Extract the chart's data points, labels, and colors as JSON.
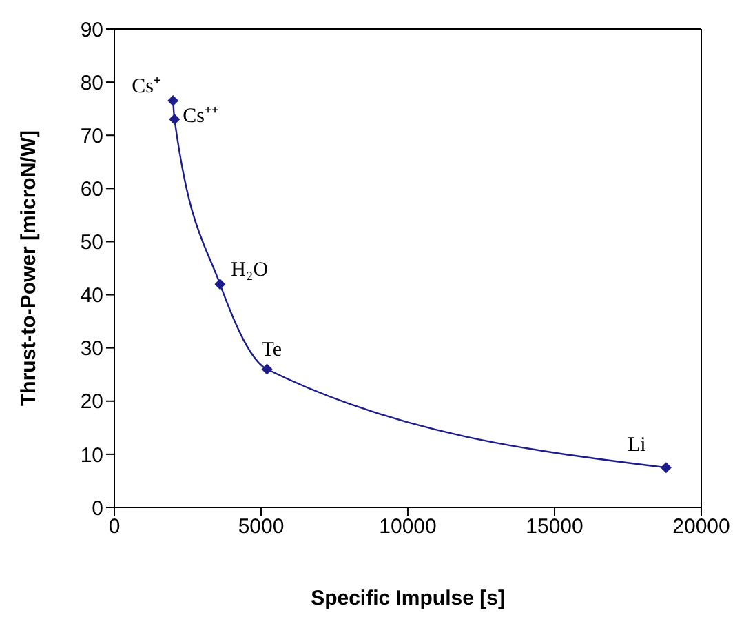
{
  "chart_data": {
    "type": "line",
    "xlabel": "Specific Impulse [s]",
    "ylabel": "Thrust-to-Power [microN/W]",
    "x": [
      2000,
      2050,
      3600,
      5200,
      18800
    ],
    "series": [
      {
        "color": "#1c1c8c",
        "values": [
          76.5,
          73,
          42,
          26,
          7.5
        ]
      }
    ],
    "xlim": [
      0,
      20000
    ],
    "xticks": [
      0,
      5000,
      10000,
      15000,
      20000
    ],
    "ylim": [
      0,
      90
    ],
    "yticks": [
      0,
      10,
      20,
      30,
      40,
      50,
      60,
      70,
      80,
      90
    ],
    "grid": false,
    "legend": false,
    "marker": "diamond",
    "line_style": "solid",
    "annotations": [
      {
        "text": "Cs⁺",
        "x": 2000,
        "y": 76.5
      },
      {
        "text": "Cs⁺⁺",
        "x": 2050,
        "y": 73
      },
      {
        "text": "H₂O",
        "x": 3600,
        "y": 42
      },
      {
        "text": "Te",
        "x": 5200,
        "y": 26
      },
      {
        "text": "Li",
        "x": 18800,
        "y": 7.5
      }
    ]
  }
}
